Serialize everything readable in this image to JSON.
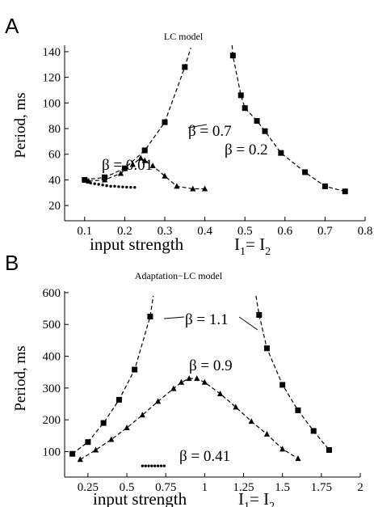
{
  "chart_data": [
    {
      "panel_label": "A",
      "type": "scatter",
      "title": "LC  model",
      "xlabel": "input strength",
      "xlabel_eq": {
        "base": "I",
        "sub1": "1",
        "eq": "= I",
        "sub2": "2"
      },
      "ylabel": "Period, ms",
      "xlim": [
        0.05,
        0.8
      ],
      "ylim": [
        10,
        145
      ],
      "xticks": [
        0.1,
        0.2,
        0.3,
        0.4,
        0.5,
        0.6,
        0.7,
        0.8
      ],
      "xtick_labels": [
        "0.1",
        "0.2",
        "0.3",
        "0.4",
        "0.5",
        "0.6",
        "0.7",
        "0.8"
      ],
      "yticks": [
        20,
        40,
        60,
        80,
        100,
        120,
        140
      ],
      "ytick_labels": [
        "20",
        "40",
        "60",
        "80",
        "100",
        "120",
        "140"
      ],
      "grid": false,
      "series": [
        {
          "marker": "square",
          "label": "β = 0.7",
          "points": [
            [
              0.1,
              40
            ],
            [
              0.15,
              42
            ],
            [
              0.2,
              49
            ],
            [
              0.25,
              63
            ],
            [
              0.3,
              85
            ],
            [
              0.35,
              128
            ],
            [
              0.47,
              137
            ],
            [
              0.49,
              106
            ],
            [
              0.5,
              96
            ],
            [
              0.53,
              86
            ],
            [
              0.55,
              78
            ],
            [
              0.59,
              61
            ],
            [
              0.65,
              46
            ],
            [
              0.7,
              35
            ],
            [
              0.75,
              31
            ]
          ],
          "curves": [
            [
              [
                0.1,
                40
              ],
              [
                0.15,
                42
              ],
              [
                0.2,
                49
              ],
              [
                0.25,
                63
              ],
              [
                0.3,
                85
              ],
              [
                0.35,
                128
              ],
              [
                0.365,
                143
              ]
            ],
            [
              [
                0.468,
                145
              ],
              [
                0.47,
                137
              ],
              [
                0.49,
                106
              ],
              [
                0.5,
                96
              ],
              [
                0.53,
                86
              ],
              [
                0.55,
                78
              ],
              [
                0.59,
                61
              ],
              [
                0.65,
                46
              ],
              [
                0.7,
                35
              ],
              [
                0.75,
                31
              ]
            ]
          ]
        },
        {
          "marker": "triangle",
          "label": "β = 0.2",
          "points": [
            [
              0.11,
              39
            ],
            [
              0.15,
              40
            ],
            [
              0.19,
              45
            ],
            [
              0.22,
              52
            ],
            [
              0.24,
              57
            ],
            [
              0.25,
              55
            ],
            [
              0.27,
              51
            ],
            [
              0.3,
              43
            ],
            [
              0.33,
              35
            ],
            [
              0.37,
              33
            ],
            [
              0.4,
              33
            ]
          ],
          "curves": [
            [
              [
                0.11,
                39
              ],
              [
                0.15,
                40
              ],
              [
                0.19,
                45
              ],
              [
                0.22,
                52
              ],
              [
                0.24,
                57
              ],
              [
                0.25,
                55
              ],
              [
                0.27,
                51
              ],
              [
                0.3,
                43
              ],
              [
                0.33,
                35
              ],
              [
                0.37,
                33
              ],
              [
                0.4,
                33
              ]
            ]
          ]
        },
        {
          "marker": "dot",
          "label": "β = 0.01",
          "points": [
            [
              0.115,
              37.5
            ],
            [
              0.125,
              37
            ],
            [
              0.135,
              36.5
            ],
            [
              0.145,
              36
            ],
            [
              0.155,
              35.5
            ],
            [
              0.165,
              35
            ],
            [
              0.175,
              35
            ],
            [
              0.185,
              34.7
            ],
            [
              0.195,
              34.5
            ],
            [
              0.205,
              34.3
            ],
            [
              0.215,
              34.2
            ],
            [
              0.225,
              34.1
            ]
          ],
          "curves": []
        }
      ]
    },
    {
      "panel_label": "B",
      "type": "scatter",
      "title": "Adaptation−LC model",
      "xlabel": "input strength",
      "xlabel_eq": {
        "base": "I",
        "sub1": "1",
        "eq": "= I",
        "sub2": "2"
      },
      "ylabel": "Period, ms",
      "xlim": [
        0.1,
        2.0
      ],
      "ylim": [
        30,
        610
      ],
      "xticks": [
        0.25,
        0.5,
        0.75,
        1.0,
        1.25,
        1.5,
        1.75,
        2.0
      ],
      "xtick_labels": [
        "0.25",
        "0.5",
        "0.75",
        "1",
        "1.25",
        "1.5",
        "1.75",
        "2"
      ],
      "yticks": [
        100,
        200,
        300,
        400,
        500,
        600
      ],
      "ytick_labels": [
        "100",
        "200",
        "300",
        "400",
        "500",
        "600"
      ],
      "grid": false,
      "series": [
        {
          "marker": "square",
          "label": "β = 1.1",
          "points": [
            [
              0.15,
              93
            ],
            [
              0.25,
              130
            ],
            [
              0.35,
              190
            ],
            [
              0.45,
              263
            ],
            [
              0.55,
              358
            ],
            [
              0.65,
              525
            ],
            [
              1.35,
              530
            ],
            [
              1.4,
              425
            ],
            [
              1.5,
              310
            ],
            [
              1.6,
              230
            ],
            [
              1.7,
              165
            ],
            [
              1.8,
              105
            ]
          ],
          "curves": [
            [
              [
                0.15,
                93
              ],
              [
                0.25,
                130
              ],
              [
                0.35,
                190
              ],
              [
                0.45,
                263
              ],
              [
                0.55,
                358
              ],
              [
                0.65,
                525
              ],
              [
                0.67,
                590
              ]
            ],
            [
              [
                1.33,
                590
              ],
              [
                1.35,
                530
              ],
              [
                1.4,
                425
              ],
              [
                1.5,
                310
              ],
              [
                1.6,
                230
              ],
              [
                1.7,
                165
              ],
              [
                1.8,
                105
              ]
            ]
          ]
        },
        {
          "marker": "triangle",
          "label": "β = 0.9",
          "points": [
            [
              0.2,
              75
            ],
            [
              0.3,
              105
            ],
            [
              0.4,
              138
            ],
            [
              0.5,
              175
            ],
            [
              0.6,
              215
            ],
            [
              0.7,
              258
            ],
            [
              0.8,
              298
            ],
            [
              0.85,
              318
            ],
            [
              0.9,
              330
            ],
            [
              0.95,
              330
            ],
            [
              1.0,
              318
            ],
            [
              1.1,
              282
            ],
            [
              1.2,
              240
            ],
            [
              1.3,
              195
            ],
            [
              1.4,
              155
            ],
            [
              1.5,
              108
            ],
            [
              1.6,
              78
            ]
          ],
          "curves": [
            [
              [
                0.2,
                75
              ],
              [
                0.3,
                105
              ],
              [
                0.4,
                138
              ],
              [
                0.5,
                175
              ],
              [
                0.6,
                215
              ],
              [
                0.7,
                258
              ],
              [
                0.8,
                298
              ],
              [
                0.85,
                318
              ],
              [
                0.9,
                330
              ],
              [
                0.95,
                330
              ],
              [
                1.0,
                318
              ],
              [
                1.1,
                282
              ],
              [
                1.2,
                240
              ],
              [
                1.3,
                195
              ],
              [
                1.4,
                155
              ],
              [
                1.5,
                108
              ],
              [
                1.6,
                78
              ]
            ]
          ]
        },
        {
          "marker": "dot",
          "label": "β = 0.41",
          "points": [
            [
              0.6,
              55
            ],
            [
              0.62,
              55
            ],
            [
              0.64,
              55
            ],
            [
              0.66,
              55
            ],
            [
              0.68,
              55
            ],
            [
              0.7,
              55
            ],
            [
              0.72,
              55
            ],
            [
              0.74,
              55
            ]
          ],
          "curves": []
        }
      ]
    }
  ]
}
